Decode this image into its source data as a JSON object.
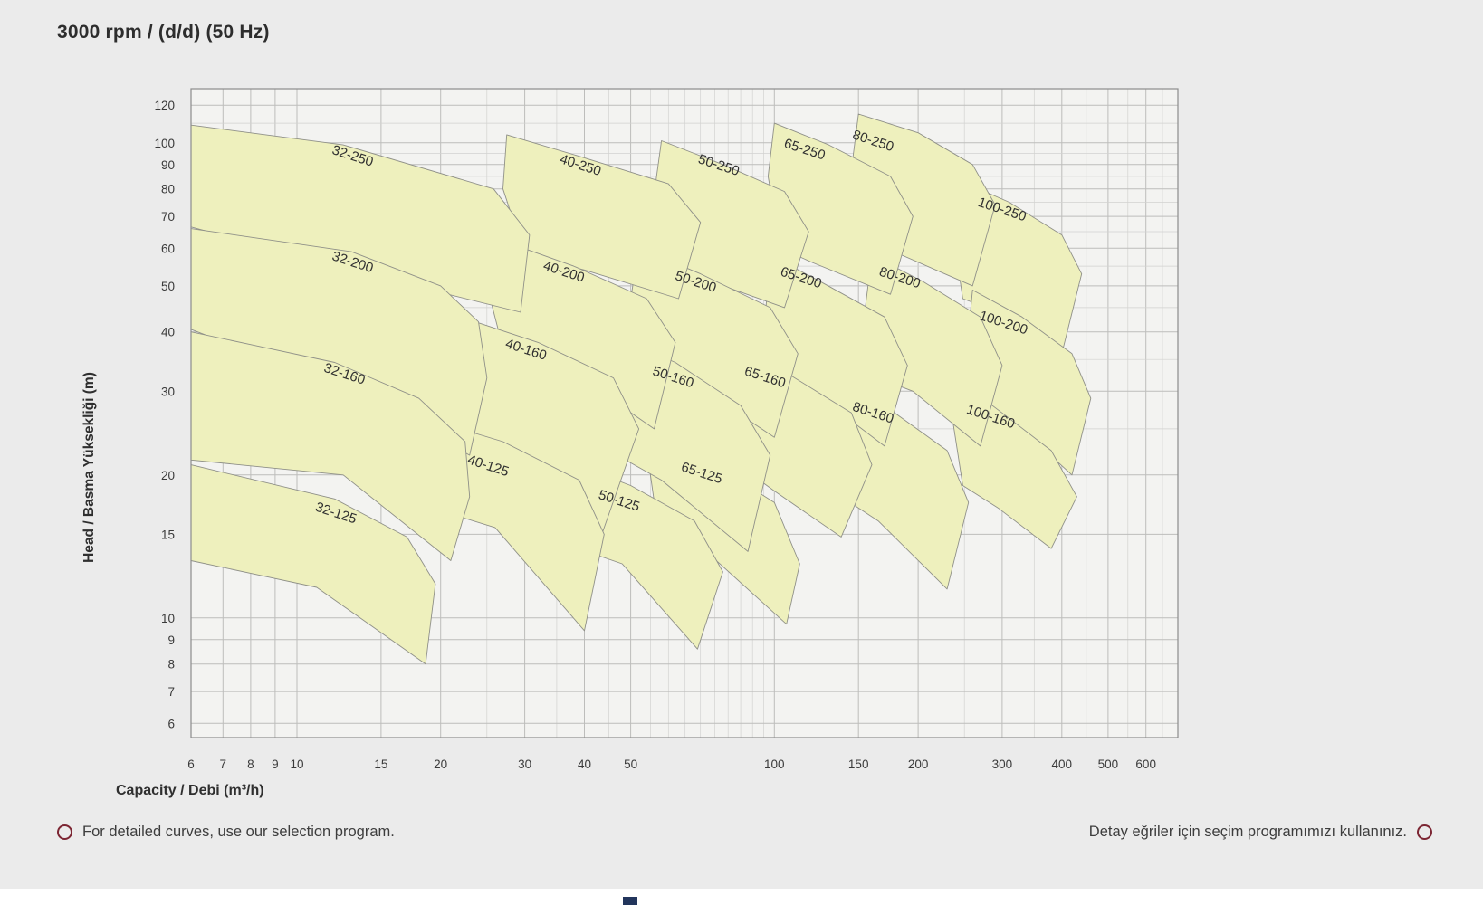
{
  "title": "3000 rpm / (d/d) (50 Hz)",
  "footer": {
    "left": "For detailed curves, use our selection program.",
    "right": "Detay eğriler için seçim programımızı kullanınız."
  },
  "chart_data": {
    "type": "area",
    "title": "3000 rpm / (d/d) (50 Hz)",
    "xlabel": "Capacity / Debi (m³/h)",
    "ylabel": "Head / Basma Yüksekliği (m)",
    "x_axis": {
      "scale": "log",
      "range": [
        6,
        700
      ],
      "ticks": [
        6,
        7,
        8,
        9,
        10,
        15,
        20,
        30,
        40,
        50,
        100,
        150,
        200,
        300,
        400,
        500,
        600
      ],
      "minor": [
        6,
        7,
        8,
        9,
        10,
        15,
        20,
        25,
        30,
        35,
        40,
        45,
        50,
        55,
        60,
        65,
        70,
        75,
        80,
        85,
        90,
        95,
        100,
        150,
        200,
        250,
        300,
        350,
        400,
        450,
        500,
        550,
        600,
        650,
        700
      ]
    },
    "y_axis": {
      "scale": "log",
      "range": [
        5.6,
        130
      ],
      "ticks": [
        6,
        7,
        8,
        9,
        10,
        15,
        20,
        30,
        40,
        50,
        60,
        70,
        80,
        90,
        100,
        120
      ],
      "minor": [
        6,
        7,
        8,
        9,
        10,
        15,
        20,
        25,
        30,
        35,
        40,
        45,
        50,
        55,
        60,
        65,
        70,
        75,
        80,
        85,
        90,
        95,
        100,
        110,
        120,
        130
      ]
    },
    "grid": true,
    "legend": "none",
    "units": {
      "x": "m3/h",
      "y": "m"
    },
    "label_angle": 18,
    "colors": {
      "region_fill": "#eef0bd",
      "region_stroke": "#8f9088",
      "grid_minor": "#d2d2d0",
      "grid_major": "#bdbdbb",
      "frame": "#8c8c8c",
      "plot_bg": "#f3f3f1",
      "label_text": "#303030",
      "tick_text": "#3a3a3a"
    },
    "regions": [
      {
        "label": "100-250",
        "label_pos": [
          298,
          71
        ],
        "points": [
          [
            240,
            84
          ],
          [
            310,
            75
          ],
          [
            400,
            64
          ],
          [
            440,
            53
          ],
          [
            400,
            36
          ],
          [
            295,
            44
          ],
          [
            248,
            47
          ],
          [
            235,
            68
          ]
        ]
      },
      {
        "label": "100-200",
        "label_pos": [
          300,
          41
        ],
        "points": [
          [
            260,
            49
          ],
          [
            330,
            43
          ],
          [
            420,
            36
          ],
          [
            460,
            29
          ],
          [
            420,
            20
          ],
          [
            315,
            26
          ],
          [
            265,
            28
          ],
          [
            255,
            40
          ]
        ]
      },
      {
        "label": "100-160",
        "label_pos": [
          282,
          26
        ],
        "points": [
          [
            240,
            32
          ],
          [
            300,
            27
          ],
          [
            380,
            22.5
          ],
          [
            430,
            18
          ],
          [
            380,
            14
          ],
          [
            295,
            17
          ],
          [
            248,
            19
          ],
          [
            235,
            27
          ]
        ]
      },
      {
        "label": "80-250",
        "label_pos": [
          160,
          99
        ],
        "points": [
          [
            150,
            115
          ],
          [
            200,
            105
          ],
          [
            260,
            90
          ],
          [
            290,
            74
          ],
          [
            260,
            50
          ],
          [
            185,
            58
          ],
          [
            155,
            62
          ],
          [
            145,
            88
          ]
        ]
      },
      {
        "label": "80-200",
        "label_pos": [
          182,
          51
        ],
        "points": [
          [
            160,
            58
          ],
          [
            205,
            51
          ],
          [
            270,
            43
          ],
          [
            300,
            34
          ],
          [
            270,
            23
          ],
          [
            195,
            30
          ],
          [
            165,
            32
          ],
          [
            155,
            45
          ]
        ]
      },
      {
        "label": "80-160",
        "label_pos": [
          160,
          26.5
        ],
        "points": [
          [
            135,
            32
          ],
          [
            170,
            28
          ],
          [
            230,
            22.5
          ],
          [
            255,
            17.5
          ],
          [
            230,
            11.5
          ],
          [
            165,
            16
          ],
          [
            138,
            18
          ],
          [
            132,
            25
          ]
        ]
      },
      {
        "label": "65-250",
        "label_pos": [
          115,
          95
        ],
        "points": [
          [
            100,
            110
          ],
          [
            130,
            99
          ],
          [
            175,
            85
          ],
          [
            195,
            70
          ],
          [
            175,
            48
          ],
          [
            120,
            56
          ],
          [
            103,
            60
          ],
          [
            97,
            85
          ]
        ]
      },
      {
        "label": "65-200",
        "label_pos": [
          113,
          51
        ],
        "points": [
          [
            98,
            58
          ],
          [
            125,
            51
          ],
          [
            170,
            43
          ],
          [
            190,
            34
          ],
          [
            170,
            23
          ],
          [
            120,
            30
          ],
          [
            100,
            33
          ],
          [
            96,
            45
          ]
        ]
      },
      {
        "label": "65-160",
        "label_pos": [
          95,
          31.5
        ],
        "points": [
          [
            82,
            38
          ],
          [
            105,
            33
          ],
          [
            145,
            27
          ],
          [
            160,
            21
          ],
          [
            138,
            14.8
          ],
          [
            100,
            18.5
          ],
          [
            84,
            21
          ],
          [
            80,
            30
          ]
        ]
      },
      {
        "label": "65-125",
        "label_pos": [
          70,
          19.8
        ],
        "points": [
          [
            56,
            24
          ],
          [
            75,
            21
          ],
          [
            100,
            17.5
          ],
          [
            113,
            13
          ],
          [
            106,
            9.7
          ],
          [
            72,
            13.8
          ],
          [
            57,
            15.5
          ],
          [
            55,
            20
          ]
        ]
      },
      {
        "label": "50-250",
        "label_pos": [
          76,
          88
        ],
        "points": [
          [
            58,
            101
          ],
          [
            78,
            90
          ],
          [
            105,
            79
          ],
          [
            118,
            65
          ],
          [
            105,
            45
          ],
          [
            70,
            52
          ],
          [
            60,
            56
          ],
          [
            56,
            78
          ]
        ]
      },
      {
        "label": "50-200",
        "label_pos": [
          68,
          50
        ],
        "points": [
          [
            52,
            60
          ],
          [
            70,
            53
          ],
          [
            98,
            45
          ],
          [
            112,
            36
          ],
          [
            100,
            24
          ],
          [
            65,
            32
          ],
          [
            53,
            35
          ],
          [
            50,
            47
          ]
        ]
      },
      {
        "label": "50-160",
        "label_pos": [
          61,
          31.5
        ],
        "points": [
          [
            44,
            40
          ],
          [
            62,
            34.5
          ],
          [
            85,
            28
          ],
          [
            98,
            22
          ],
          [
            88,
            13.8
          ],
          [
            58,
            19.5
          ],
          [
            45,
            22.5
          ],
          [
            43,
            32
          ]
        ]
      },
      {
        "label": "50-125",
        "label_pos": [
          47,
          17.3
        ],
        "points": [
          [
            34,
            22
          ],
          [
            50,
            19
          ],
          [
            68,
            16
          ],
          [
            78,
            12.5
          ],
          [
            69,
            8.6
          ],
          [
            48,
            13
          ],
          [
            35,
            14.5
          ],
          [
            33,
            18
          ]
        ]
      },
      {
        "label": "40-250",
        "label_pos": [
          39,
          88
        ],
        "points": [
          [
            27.5,
            104
          ],
          [
            40,
            93
          ],
          [
            60,
            82
          ],
          [
            70,
            68
          ],
          [
            63,
            47
          ],
          [
            40,
            54
          ],
          [
            30,
            58
          ],
          [
            27,
            80
          ]
        ]
      },
      {
        "label": "40-200",
        "label_pos": [
          36,
          52.5
        ],
        "points": [
          [
            26,
            63
          ],
          [
            38,
            55
          ],
          [
            54,
            47
          ],
          [
            62,
            38
          ],
          [
            56,
            25
          ],
          [
            36,
            34
          ],
          [
            27,
            37
          ],
          [
            25,
            50
          ]
        ]
      },
      {
        "label": "40-160",
        "label_pos": [
          30,
          36
        ],
        "points": [
          [
            22,
            43
          ],
          [
            32,
            38
          ],
          [
            46,
            32
          ],
          [
            52,
            25
          ],
          [
            43,
            14.5
          ],
          [
            29,
            22
          ],
          [
            22.5,
            25
          ],
          [
            21,
            35
          ]
        ]
      },
      {
        "label": "40-125",
        "label_pos": [
          25,
          20.5
        ],
        "points": [
          [
            17,
            27
          ],
          [
            27,
            23.5
          ],
          [
            39,
            19.5
          ],
          [
            44,
            15
          ],
          [
            40,
            9.4
          ],
          [
            26,
            15.5
          ],
          [
            17.5,
            17.5
          ],
          [
            16.5,
            22
          ]
        ]
      },
      {
        "label": "32-250",
        "label_pos": [
          13,
          92
        ],
        "points": [
          [
            6,
            109
          ],
          [
            12.5,
            99
          ],
          [
            25.8,
            80
          ],
          [
            30.7,
            64
          ],
          [
            29.4,
            44
          ],
          [
            15,
            52
          ],
          [
            6,
            66.5
          ]
        ]
      },
      {
        "label": "32-200",
        "label_pos": [
          13,
          55
        ],
        "points": [
          [
            6,
            66
          ],
          [
            13,
            59
          ],
          [
            20,
            50
          ],
          [
            24,
            42
          ],
          [
            25,
            32
          ],
          [
            23,
            22
          ],
          [
            13,
            30
          ],
          [
            6,
            40.5
          ]
        ]
      },
      {
        "label": "32-160",
        "label_pos": [
          12.5,
          32
        ],
        "points": [
          [
            6,
            40
          ],
          [
            12,
            34.5
          ],
          [
            18,
            29
          ],
          [
            22.5,
            23.5
          ],
          [
            23,
            18
          ],
          [
            21,
            13.2
          ],
          [
            12.5,
            20
          ],
          [
            6,
            21.5
          ]
        ]
      },
      {
        "label": "32-125",
        "label_pos": [
          12,
          16.3
        ],
        "points": [
          [
            6,
            21
          ],
          [
            12,
            17.8
          ],
          [
            17,
            14.8
          ],
          [
            19.5,
            11.8
          ],
          [
            18.6,
            8.0
          ],
          [
            11,
            11.6
          ],
          [
            6,
            13.2
          ]
        ]
      }
    ]
  }
}
